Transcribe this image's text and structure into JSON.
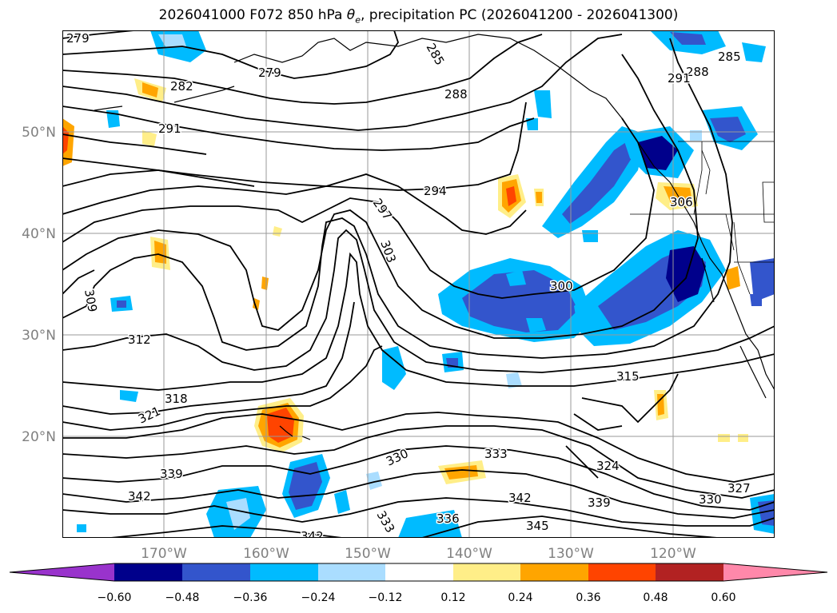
{
  "title": {
    "prefix": "2026041000 F072 850 hPa ",
    "theta": "θ",
    "sub": "e",
    "suffix": ", precipitation PC (2026041200 - 2026041300)"
  },
  "latitude_labels": [
    "50°N",
    "40°N",
    "30°N",
    "20°N"
  ],
  "longitude_labels": [
    "170°W",
    "160°W",
    "150°W",
    "140°W",
    "130°W",
    "120°W"
  ],
  "contour_labels": [
    "279",
    "285",
    "282",
    "279",
    "288",
    "291",
    "288",
    "285",
    "291",
    "294",
    "306",
    "297",
    "303",
    "309",
    "300",
    "312",
    "321",
    "315",
    "318",
    "330",
    "333",
    "324",
    "339",
    "342",
    "342",
    "339",
    "327",
    "333",
    "336",
    "330",
    "345",
    "342"
  ],
  "colorbar": {
    "ticks": [
      "−0.60",
      "−0.48",
      "−0.36",
      "−0.24",
      "−0.12",
      "0.12",
      "0.24",
      "0.36",
      "0.48",
      "0.60"
    ],
    "colors": [
      "#9933cc",
      "#00008b",
      "#3355cc",
      "#00bbff",
      "#aaddff",
      "#ffffff",
      "#ffee88",
      "#ffa500",
      "#ff4400",
      "#b22222",
      "#ff88aa"
    ]
  },
  "map_data": {
    "lon_range": [
      -180,
      -110
    ],
    "lat_range": [
      10,
      60
    ],
    "grid_lons": [
      -170,
      -160,
      -150,
      -140,
      -130,
      -120
    ],
    "grid_lats": [
      50,
      40,
      30,
      20
    ],
    "field": "850 hPa theta-e contours with precipitation PC shading"
  }
}
